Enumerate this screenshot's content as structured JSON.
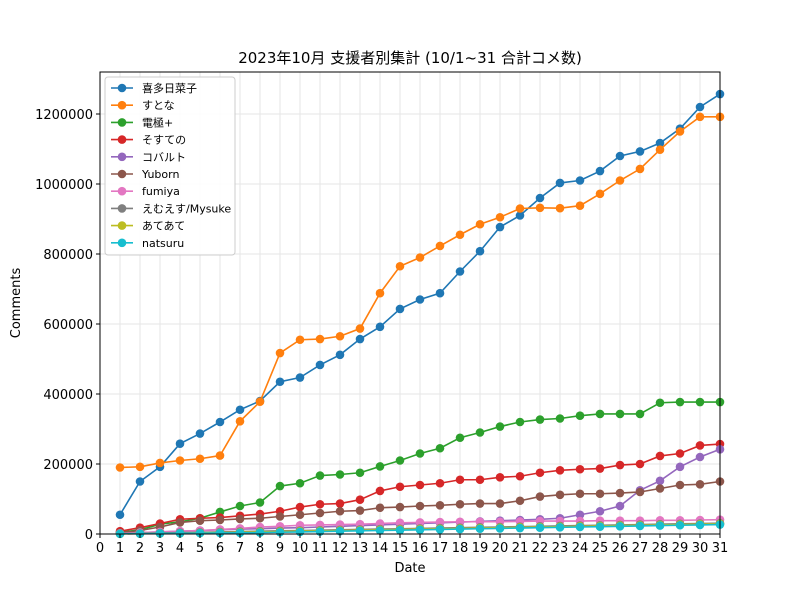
{
  "chart_data": {
    "type": "line",
    "title": "2023年10月 支援者別集計 (10/1~31 合計コメ数)",
    "xlabel": "Date",
    "ylabel": "Comments",
    "xlim": [
      0,
      31
    ],
    "ylim": [
      0,
      1320000
    ],
    "x_ticks": [
      0,
      1,
      2,
      3,
      4,
      5,
      6,
      7,
      8,
      9,
      10,
      11,
      12,
      13,
      14,
      15,
      16,
      17,
      18,
      19,
      20,
      21,
      22,
      23,
      24,
      25,
      26,
      27,
      28,
      29,
      30,
      31
    ],
    "y_ticks": [
      0,
      200000,
      400000,
      600000,
      800000,
      1000000,
      1200000
    ],
    "grid": true,
    "legend_position": "top-left",
    "x": [
      1,
      2,
      3,
      4,
      5,
      6,
      7,
      8,
      9,
      10,
      11,
      12,
      13,
      14,
      15,
      16,
      17,
      18,
      19,
      20,
      21,
      22,
      23,
      24,
      25,
      26,
      27,
      28,
      29,
      30,
      31
    ],
    "series": [
      {
        "name": "喜多日菜子",
        "color": "#1f77b4",
        "values": [
          55000,
          150000,
          192000,
          258000,
          287000,
          320000,
          355000,
          380000,
          435000,
          447000,
          483000,
          512000,
          557000,
          592000,
          643000,
          670000,
          688000,
          750000,
          808000,
          877000,
          910000,
          960000,
          1003000,
          1010000,
          1037000,
          1080000,
          1093000,
          1117000,
          1158000,
          1220000,
          1257000
        ]
      },
      {
        "name": "すとな",
        "color": "#ff7f0e",
        "values": [
          190000,
          192000,
          203000,
          210000,
          215000,
          224000,
          322000,
          378000,
          517000,
          555000,
          557000,
          565000,
          587000,
          688000,
          765000,
          790000,
          823000,
          855000,
          885000,
          905000,
          930000,
          932000,
          931000,
          938000,
          972000,
          1010000,
          1043000,
          1098000,
          1150000,
          1192000,
          1192000
        ]
      },
      {
        "name": "電極+",
        "color": "#2ca02c",
        "values": [
          5000,
          12000,
          28000,
          35000,
          45000,
          63000,
          80000,
          90000,
          137000,
          145000,
          167000,
          170000,
          175000,
          193000,
          210000,
          230000,
          245000,
          275000,
          290000,
          307000,
          320000,
          327000,
          330000,
          338000,
          343000,
          343000,
          343000,
          375000,
          377000,
          377000,
          377000
        ]
      },
      {
        "name": "そすての",
        "color": "#d62728",
        "values": [
          8000,
          18000,
          30000,
          42000,
          45000,
          47000,
          52000,
          57000,
          65000,
          77000,
          85000,
          87000,
          98000,
          123000,
          135000,
          140000,
          145000,
          155000,
          155000,
          162000,
          165000,
          175000,
          182000,
          185000,
          187000,
          197000,
          200000,
          223000,
          230000,
          253000,
          257000
        ]
      },
      {
        "name": "コバルト",
        "color": "#9467bd",
        "values": [
          2000,
          4000,
          6000,
          8000,
          10000,
          12000,
          14000,
          15000,
          17000,
          18000,
          20000,
          22000,
          24000,
          26000,
          28000,
          30000,
          32000,
          34000,
          36000,
          38000,
          40000,
          42000,
          45000,
          55000,
          65000,
          80000,
          125000,
          152000,
          192000,
          220000,
          242000
        ]
      },
      {
        "name": "Yuborn",
        "color": "#8c564b",
        "values": [
          3000,
          10000,
          20000,
          33000,
          38000,
          40000,
          43000,
          45000,
          50000,
          55000,
          60000,
          65000,
          67000,
          75000,
          77000,
          80000,
          82000,
          85000,
          87000,
          87000,
          95000,
          107000,
          112000,
          115000,
          115000,
          117000,
          120000,
          130000,
          140000,
          142000,
          150000
        ]
      },
      {
        "name": "fumiya",
        "color": "#e377c2",
        "values": [
          2000,
          4000,
          6000,
          8000,
          10000,
          13000,
          16000,
          20000,
          22000,
          25000,
          26000,
          27000,
          28000,
          30000,
          32000,
          33000,
          34000,
          35000,
          35000,
          35000,
          36000,
          37000,
          37000,
          37000,
          38000,
          38000,
          38000,
          39000,
          39000,
          40000,
          41000
        ]
      },
      {
        "name": "えむえす/Mysuke",
        "color": "#7f7f7f",
        "values": [
          1000,
          2000,
          3000,
          4000,
          5000,
          6000,
          7000,
          8000,
          9000,
          10000,
          11000,
          12000,
          13000,
          14000,
          15000,
          16000,
          17000,
          18000,
          19000,
          20000,
          21000,
          22000,
          23000,
          24000,
          25000,
          26000,
          27000,
          28000,
          29000,
          30000,
          31000
        ]
      },
      {
        "name": "あてあて",
        "color": "#bcbd22",
        "values": [
          500,
          1000,
          1500,
          2000,
          3000,
          4000,
          5000,
          6000,
          7000,
          8000,
          9000,
          10000,
          11000,
          12000,
          13000,
          14000,
          15000,
          16000,
          17000,
          18000,
          19000,
          20000,
          21000,
          22000,
          23000,
          24000,
          25000,
          26000,
          27000,
          28000,
          29000
        ]
      },
      {
        "name": "natsuru",
        "color": "#17becf",
        "values": [
          500,
          1000,
          1500,
          2000,
          2500,
          3000,
          3500,
          4000,
          5000,
          6000,
          7000,
          8000,
          9000,
          10000,
          11000,
          12000,
          13000,
          14000,
          15000,
          16000,
          17000,
          18000,
          19000,
          20000,
          21000,
          22000,
          23000,
          24000,
          25000,
          26000,
          27000
        ]
      }
    ]
  }
}
